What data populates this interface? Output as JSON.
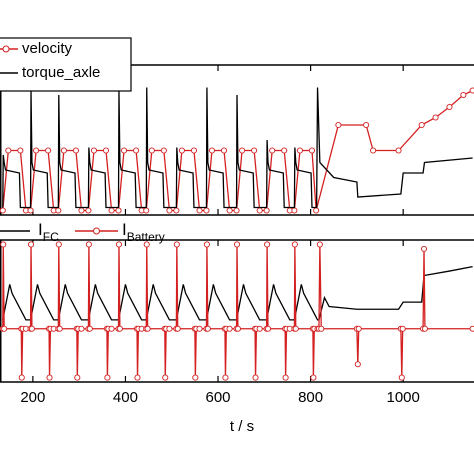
{
  "chart_data": [
    {
      "type": "line",
      "xlim": [
        129,
        1153
      ],
      "ylim": [
        0,
        100
      ],
      "xticks": [
        200,
        400,
        600,
        800,
        1000
      ],
      "series": [
        {
          "name": "velocity",
          "color": "#d42020",
          "marker": "circle",
          "x": [
            135,
            147,
            173,
            185,
            195,
            207,
            233,
            245,
            255,
            267,
            293,
            305,
            320,
            332,
            358,
            370,
            385,
            397,
            423,
            435,
            445,
            457,
            483,
            495,
            510,
            522,
            548,
            560,
            575,
            587,
            613,
            625,
            640,
            652,
            678,
            690,
            705,
            717,
            743,
            755,
            765,
            777,
            803,
            812,
            860,
            920,
            935,
            990,
            1040,
            1070,
            1100,
            1130,
            1150
          ],
          "values": [
            3,
            43,
            43,
            3,
            3,
            43,
            43,
            3,
            3,
            43,
            43,
            3,
            3,
            43,
            43,
            3,
            3,
            43,
            43,
            3,
            3,
            43,
            43,
            3,
            3,
            43,
            43,
            3,
            3,
            43,
            43,
            3,
            3,
            43,
            43,
            3,
            3,
            43,
            43,
            3,
            3,
            43,
            43,
            3,
            60,
            60,
            43,
            43,
            60,
            65,
            72,
            80,
            83
          ]
        },
        {
          "name": "torque_axle",
          "color": "#000000",
          "x": [
            135,
            136,
            138,
            141,
            171,
            173,
            183,
            195,
            196,
            198,
            201,
            231,
            233,
            243,
            255,
            256,
            258,
            261,
            291,
            293,
            303,
            320,
            321,
            323,
            326,
            356,
            358,
            368,
            385,
            386,
            388,
            391,
            421,
            423,
            433,
            445,
            446,
            448,
            451,
            481,
            483,
            493,
            510,
            511,
            513,
            516,
            546,
            548,
            558,
            575,
            576,
            578,
            581,
            611,
            613,
            623,
            640,
            641,
            643,
            646,
            676,
            678,
            688,
            705,
            706,
            708,
            711,
            741,
            743,
            753,
            765,
            766,
            768,
            771,
            801,
            803,
            811,
            813,
            815,
            820,
            850,
            900,
            902,
            995,
            1000,
            1043,
            1046,
            1150
          ],
          "values": [
            5,
            40,
            35,
            30,
            28,
            5,
            5,
            5,
            83,
            35,
            30,
            28,
            5,
            5,
            5,
            80,
            35,
            30,
            28,
            5,
            5,
            5,
            45,
            35,
            30,
            28,
            5,
            5,
            5,
            83,
            35,
            30,
            28,
            5,
            5,
            5,
            85,
            35,
            30,
            28,
            5,
            5,
            5,
            45,
            35,
            30,
            28,
            5,
            5,
            5,
            85,
            35,
            30,
            28,
            5,
            5,
            5,
            80,
            35,
            30,
            28,
            5,
            5,
            5,
            50,
            35,
            30,
            28,
            5,
            5,
            5,
            45,
            35,
            30,
            28,
            5,
            5,
            5,
            85,
            35,
            25,
            22,
            12,
            14,
            28,
            28,
            35,
            38
          ]
        }
      ]
    },
    {
      "type": "line",
      "xlim": [
        129,
        1153
      ],
      "ylim": [
        -60,
        100
      ],
      "xticks": [
        200,
        400,
        600,
        800,
        1000
      ],
      "xlabel": "t / s",
      "series": [
        {
          "name": "I",
          "subscript": "FC",
          "color": "#000000",
          "x": [
            135,
            150,
            155,
            180,
            185,
            195,
            210,
            215,
            240,
            245,
            255,
            270,
            275,
            300,
            305,
            320,
            335,
            340,
            365,
            370,
            385,
            400,
            405,
            430,
            435,
            445,
            460,
            465,
            490,
            495,
            510,
            525,
            530,
            555,
            560,
            575,
            590,
            595,
            620,
            625,
            640,
            655,
            660,
            685,
            690,
            705,
            720,
            725,
            750,
            755,
            765,
            780,
            785,
            810,
            815,
            818,
            830,
            840,
            900,
            990,
            1000,
            1040,
            1045,
            1100,
            1150
          ],
          "values": [
            10,
            50,
            40,
            15,
            10,
            10,
            50,
            40,
            15,
            10,
            10,
            50,
            40,
            15,
            10,
            10,
            50,
            40,
            15,
            10,
            10,
            50,
            40,
            15,
            10,
            10,
            50,
            40,
            15,
            10,
            10,
            50,
            40,
            15,
            10,
            10,
            50,
            40,
            15,
            10,
            10,
            50,
            40,
            15,
            10,
            10,
            50,
            40,
            15,
            10,
            10,
            50,
            40,
            15,
            10,
            10,
            35,
            25,
            22,
            22,
            30,
            30,
            60,
            65,
            70
          ]
        },
        {
          "name": "I",
          "subscript": "Battery",
          "color": "#d42020",
          "marker": "circle",
          "x": [
            135,
            136,
            138,
            175,
            176,
            178,
            185,
            195,
            196,
            198,
            235,
            236,
            238,
            245,
            255,
            256,
            258,
            295,
            296,
            298,
            305,
            320,
            321,
            323,
            360,
            361,
            363,
            370,
            385,
            386,
            388,
            425,
            426,
            428,
            435,
            445,
            446,
            448,
            485,
            486,
            488,
            495,
            510,
            511,
            513,
            550,
            551,
            553,
            560,
            575,
            576,
            578,
            615,
            616,
            618,
            625,
            640,
            641,
            643,
            680,
            681,
            683,
            690,
            705,
            706,
            708,
            745,
            746,
            748,
            755,
            765,
            766,
            768,
            805,
            806,
            808,
            815,
            818,
            820,
            823,
            900,
            902,
            904,
            995,
            997,
            999,
            1043,
            1045,
            1047,
            1150
          ],
          "values": [
            0,
            95,
            0,
            0,
            -55,
            0,
            0,
            0,
            95,
            0,
            0,
            -55,
            0,
            0,
            0,
            95,
            0,
            0,
            -55,
            0,
            0,
            0,
            95,
            0,
            0,
            -55,
            0,
            0,
            0,
            95,
            0,
            0,
            -55,
            0,
            0,
            0,
            95,
            0,
            0,
            -55,
            0,
            0,
            0,
            95,
            0,
            0,
            -55,
            0,
            0,
            0,
            95,
            0,
            0,
            -55,
            0,
            0,
            0,
            95,
            0,
            0,
            -55,
            0,
            0,
            0,
            95,
            0,
            0,
            -55,
            0,
            0,
            0,
            95,
            0,
            0,
            -55,
            0,
            0,
            0,
            95,
            0,
            0,
            -40,
            0,
            0,
            -55,
            0,
            0,
            90,
            0,
            0
          ]
        }
      ]
    }
  ]
}
